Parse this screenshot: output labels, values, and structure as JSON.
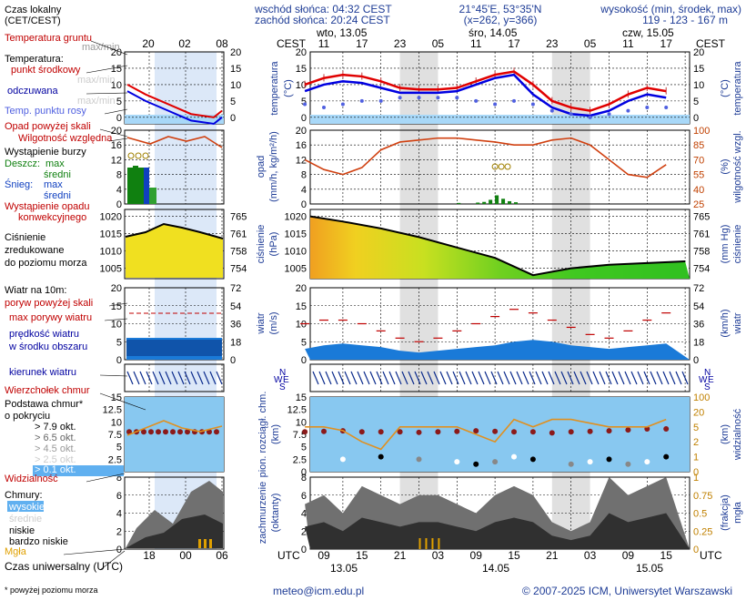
{
  "header": {
    "sunrise": "wschód słońca: 04:32 CEST",
    "sunset": "zachód słońca: 20:24 CEST",
    "coords": "21°45'E, 53°35'N",
    "grid": "(x=262, y=366)",
    "height_label": "wysokość (min, środek, max)",
    "height_values": "119 - 123 - 167 m"
  },
  "legend": {
    "local_time": "Czas lokalny",
    "local_time_tz": "(CET/CEST)",
    "local_hours": [
      "20",
      "02",
      "08"
    ],
    "ground_temp": "Temperatura gruntu",
    "max_min": "max/min",
    "temperature": "Temperatura:",
    "mid_point": "punkt środkowy",
    "max_min2": "max/min",
    "felt": "odczuwana",
    "max_min3": "max/min",
    "dew": "Temp. punktu rosy",
    "precip_threshold": "Opad powyżej skali",
    "humidity": "Wilgotność względna",
    "storm": "Wystąpienie burzy",
    "rain": "Deszcz:",
    "rain_max": "max",
    "rain_avg": "średni",
    "snow": "Śnieg:",
    "snow_max": "max",
    "snow_avg": "średni",
    "convective1": "Wystąpienie opadu",
    "convective2": "konwekcyjnego",
    "pressure1": "Ciśnienie",
    "pressure2": "zredukowane",
    "pressure3": "do poziomu morza",
    "wind": "Wiatr na 10m:",
    "gust_threshold": "poryw powyżej skali",
    "gust": "max porywy wiatru",
    "wind_speed1": "prędkość wiatru",
    "wind_speed2": "w środku obszaru",
    "wind_dir": "kierunek wiatru",
    "cloud_top": "Wierzchołek chmur",
    "cloud_base1": "Podstawa chmur*",
    "cloud_base2": "o pokryciu",
    "okt1": "> 7.9 okt.",
    "okt2": "> 6.5 okt.",
    "okt3": "> 4.5 okt.",
    "okt4": "> 2.5 okt.",
    "okt5": "> 0.1 okt.",
    "visibility": "Widzialność",
    "clouds": "Chmury:",
    "high": "wysokie",
    "mid": "średnie",
    "low": "niskie",
    "very_low": "bardzo niskie",
    "fog": "Mgła",
    "utc_time": "Czas uniwersalny (UTC)",
    "utc_hours": [
      "18",
      "00",
      "06"
    ],
    "footnote": "* powyżej poziomu morza"
  },
  "axes": {
    "cest": "CEST",
    "utc": "UTC",
    "day1": "wto, 13.05",
    "day2": "śro, 14.05",
    "day3": "czw, 15.05",
    "cest_ticks": [
      "11",
      "17",
      "23",
      "05",
      "11",
      "17",
      "23",
      "05",
      "11",
      "17"
    ],
    "utc_ticks": [
      "09",
      "15",
      "21",
      "03",
      "09",
      "15",
      "21",
      "03",
      "09",
      "15"
    ],
    "utc_dates": [
      "13.05",
      "14.05",
      "15.05"
    ],
    "temp_label": "temperatura",
    "temp_unit": "(°C)",
    "precip_label": "opad",
    "precip_unit": "(mm/h, kg/m²/h)",
    "hum_label": "wilgotność wzgl.",
    "hum_unit": "(%)",
    "press_label": "ciśnienie",
    "press_unit": "(hPa)",
    "press_unit2": "(mm Hg)",
    "wind_label": "wiatr",
    "wind_unit": "(m/s)",
    "wind_unit2": "(km/h)",
    "cloud_label": "pion. rozciągł. chm.",
    "cloud_unit": "(km)",
    "vis_label": "widzialność",
    "vis_unit": "(km)",
    "cover_label": "zachmurzenie",
    "cover_unit": "(oktanty)",
    "fog_label": "mgła",
    "fog_unit": "(frakcja)"
  },
  "colors": {
    "temp": "#e00000",
    "felt": "#0000e0",
    "dew": "#5060e0",
    "ground": "#80a0d0",
    "humidity": "#d04010",
    "rain": "#108010",
    "snow": "#1040c0",
    "pressure_line": "#000000",
    "wind": "#0a2a8c",
    "gust": "#c00000",
    "visibility": "#e09020",
    "cloud_top": "#8b1a1a",
    "night_band": "#e0e0e0",
    "label_red": "#c00000",
    "label_blue": "#0000a0"
  },
  "footer": {
    "email": "meteo@icm.edu.pl",
    "copyright": "© 2007-2025 ICM, Uniwersytet Warszawski"
  },
  "chart_data": [
    {
      "type": "line",
      "name_key": "temperature",
      "x_hours_utc": [
        6,
        9,
        12,
        15,
        18,
        21,
        24,
        27,
        30,
        33,
        36,
        39,
        42,
        45,
        48,
        51,
        54,
        57,
        60,
        63
      ],
      "series": [
        {
          "name": "punkt środkowy",
          "values": [
            10,
            12,
            13,
            12.5,
            11,
            9,
            8.5,
            8.5,
            9,
            11,
            13,
            14,
            10,
            5,
            3,
            2,
            4,
            7,
            9,
            8
          ]
        },
        {
          "name": "odczuwana",
          "values": [
            8,
            10,
            11,
            10.5,
            9,
            7.5,
            7.5,
            7.5,
            8,
            10,
            12,
            13,
            7,
            3,
            1,
            0.5,
            2,
            5,
            7,
            6
          ]
        },
        {
          "name": "Temp. punktu rosy",
          "values": [
            4,
            3,
            4,
            5,
            5,
            6,
            6,
            6,
            6,
            5,
            4,
            5,
            4,
            2,
            1,
            0,
            1,
            2,
            3,
            3
          ]
        }
      ],
      "yticks": [
        0,
        5,
        10,
        15,
        20
      ],
      "ylim": [
        -2,
        20
      ]
    },
    {
      "type": "line",
      "name_key": "humidity",
      "x_hours_utc": [
        6,
        9,
        12,
        15,
        18,
        21,
        24,
        27,
        30,
        33,
        36,
        39,
        42,
        45,
        48,
        51,
        54,
        57,
        60,
        63
      ],
      "series": [
        {
          "name": "Wilgotność względna",
          "values": [
            70,
            60,
            55,
            62,
            80,
            88,
            90,
            92,
            92,
            90,
            88,
            85,
            85,
            90,
            92,
            85,
            70,
            55,
            52,
            65
          ]
        }
      ],
      "yticks": [
        25,
        40,
        55,
        70,
        85,
        100
      ],
      "ylim": [
        25,
        100
      ]
    },
    {
      "type": "area",
      "name_key": "pressure",
      "x_hours_utc": [
        6,
        12,
        18,
        24,
        30,
        36,
        42,
        48,
        54,
        60,
        66
      ],
      "series": [
        {
          "name": "Ciśnienie",
          "values": [
            1020,
            1018.5,
            1016.5,
            1014,
            1011,
            1008,
            1003,
            1005,
            1006,
            1006.5,
            1007
          ]
        }
      ],
      "yticks": [
        1005,
        1010,
        1015,
        1020
      ],
      "ylim": [
        1002,
        1022
      ]
    },
    {
      "type": "area",
      "name_key": "wind",
      "x_hours_utc": [
        6,
        9,
        12,
        15,
        18,
        21,
        24,
        27,
        30,
        33,
        36,
        39,
        42,
        45,
        48,
        51,
        54,
        57,
        60,
        63
      ],
      "series": [
        {
          "name": "prędkość wiatru",
          "values": [
            3,
            4,
            4.5,
            4,
            3.5,
            2.5,
            2,
            2.5,
            3,
            3.5,
            4,
            5,
            5.5,
            5,
            4,
            3.5,
            3,
            3.5,
            4,
            4.5
          ]
        },
        {
          "name": "max porywy wiatru",
          "values": [
            10,
            11,
            11,
            10,
            8,
            6,
            5,
            6,
            8,
            10,
            12,
            14,
            13,
            11,
            9,
            7,
            6,
            8,
            11,
            13
          ]
        }
      ],
      "yticks": [
        0,
        5,
        10,
        15,
        20
      ],
      "ylim": [
        0,
        20
      ]
    },
    {
      "type": "line",
      "name_key": "visibility",
      "x_hours_utc": [
        6,
        9,
        12,
        15,
        18,
        21,
        24,
        27,
        30,
        33,
        36,
        39,
        42,
        45,
        48,
        51,
        54,
        57,
        60,
        63
      ],
      "series": [
        {
          "name": "Wierzchołek chmur",
          "values": [
            8,
            8.1,
            8.2,
            8,
            8,
            8,
            7.9,
            8,
            8.1,
            8.2,
            8.1,
            8,
            8,
            7.8,
            8,
            8.1,
            8.2,
            8.4,
            8.6,
            8.6
          ]
        },
        {
          "name": "Widzialność",
          "values": [
            60,
            60,
            55,
            40,
            30,
            60,
            60,
            60,
            60,
            50,
            40,
            70,
            60,
            70,
            70,
            65,
            60,
            60,
            60,
            70
          ]
        }
      ],
      "yticks": [
        0,
        2.5,
        5,
        7.5,
        10,
        12.5,
        15
      ],
      "ylim": [
        0,
        15
      ]
    },
    {
      "type": "area",
      "name_key": "clouds",
      "x_hours_utc": [
        6,
        9,
        12,
        15,
        18,
        21,
        24,
        27,
        30,
        33,
        36,
        39,
        42,
        45,
        48,
        51,
        54,
        57,
        60,
        63
      ],
      "series": [
        {
          "name": "zachmurzenie",
          "values": [
            5,
            6,
            4,
            7,
            6,
            5,
            6,
            6,
            5,
            4,
            6,
            7,
            6,
            3,
            2,
            3,
            8,
            6,
            7,
            8
          ]
        }
      ],
      "yticks": [
        0,
        2,
        4,
        6,
        8
      ],
      "ylim": [
        0,
        8
      ]
    }
  ]
}
